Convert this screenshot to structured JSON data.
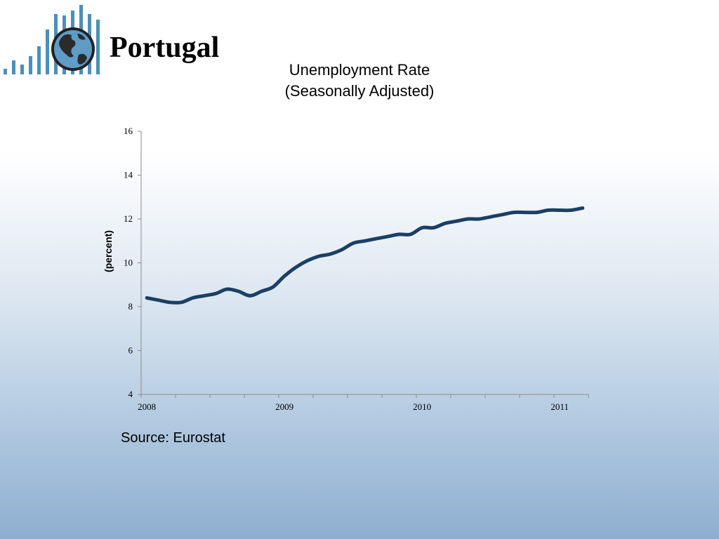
{
  "header": {
    "country": "Portugal"
  },
  "logo": {
    "icon": "globe-bars-logo",
    "bar_color": "#4a90b8",
    "globe_color": "#3f7faa"
  },
  "source": "Source: Eurostat",
  "chart_data": {
    "type": "line",
    "title_lines": [
      "Unemployment Rate",
      "(Seasonally Adjusted)"
    ],
    "xlabel": "",
    "ylabel": "(percent)",
    "ylim": [
      4,
      16
    ],
    "yticks": [
      4,
      6,
      8,
      10,
      12,
      14,
      16
    ],
    "xticks": [
      "2008",
      "2009",
      "2010",
      "2011"
    ],
    "x_start": "2008-01",
    "x_end": "2011-03",
    "grid": false,
    "line_color": "#1b3f66",
    "series": [
      {
        "x": [
          "2008-01",
          "2008-02",
          "2008-03",
          "2008-04",
          "2008-05",
          "2008-06",
          "2008-07",
          "2008-08",
          "2008-09",
          "2008-10",
          "2008-11",
          "2008-12",
          "2009-01",
          "2009-02",
          "2009-03",
          "2009-04",
          "2009-05",
          "2009-06",
          "2009-07",
          "2009-08",
          "2009-09",
          "2009-10",
          "2009-11",
          "2009-12",
          "2010-01",
          "2010-02",
          "2010-03",
          "2010-04",
          "2010-05",
          "2010-06",
          "2010-07",
          "2010-08",
          "2010-09",
          "2010-10",
          "2010-11",
          "2010-12",
          "2011-01",
          "2011-02",
          "2011-03"
        ],
        "values": [
          8.4,
          8.3,
          8.2,
          8.2,
          8.4,
          8.5,
          8.6,
          8.8,
          8.7,
          8.5,
          8.7,
          8.9,
          9.4,
          9.8,
          10.1,
          10.3,
          10.4,
          10.6,
          10.9,
          11.0,
          11.1,
          11.2,
          11.3,
          11.3,
          11.6,
          11.6,
          11.8,
          11.9,
          12.0,
          12.0,
          12.1,
          12.2,
          12.3,
          12.3,
          12.3,
          12.4,
          12.4,
          12.4,
          12.5
        ]
      }
    ]
  }
}
